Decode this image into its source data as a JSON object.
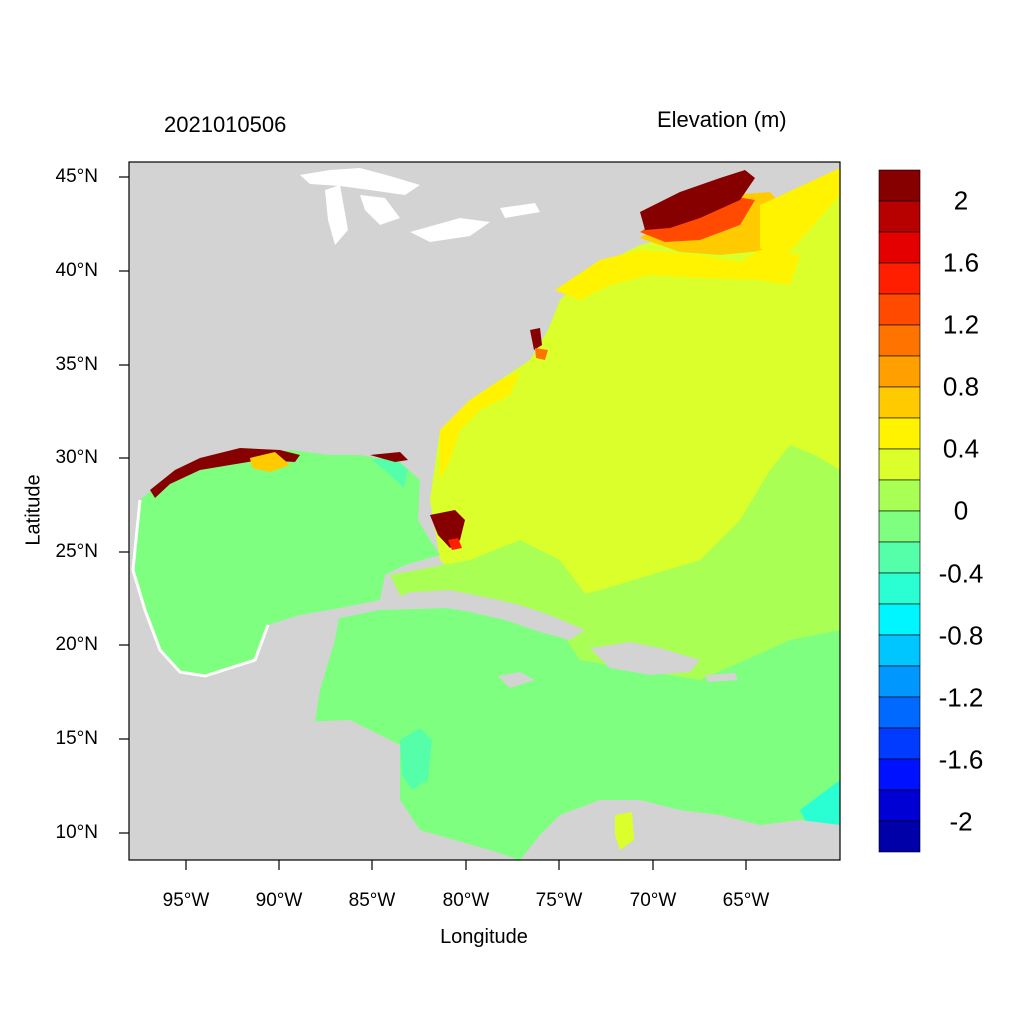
{
  "header": {
    "date_label": "2021010506",
    "variable_title": "Elevation (m)"
  },
  "axes": {
    "xlabel": "Longitude",
    "ylabel": "Latitude",
    "lat_ticks": [
      "45°N",
      "40°N",
      "35°N",
      "30°N",
      "25°N",
      "20°N",
      "15°N",
      "10°N"
    ],
    "lon_ticks": [
      "95°W",
      "90°W",
      "85°W",
      "80°W",
      "75°W",
      "70°W",
      "65°W"
    ],
    "lat_tick_values": [
      45,
      40,
      35,
      30,
      25,
      20,
      15,
      10
    ],
    "lon_tick_values": [
      -95,
      -90,
      -85,
      -80,
      -75,
      -70,
      -65
    ],
    "lon_range": [
      -98,
      -60
    ],
    "lat_range": [
      8.5,
      46
    ]
  },
  "colorbar": {
    "labels": [
      "2",
      "1.6",
      "1.2",
      "0.8",
      "0.4",
      "0",
      "-0.4",
      "-0.8",
      "-1.2",
      "-1.6",
      "-2"
    ],
    "colors": [
      "#870000",
      "#b70000",
      "#e50000",
      "#ff1e00",
      "#ff4a00",
      "#ff7400",
      "#ff9f00",
      "#ffcb00",
      "#fff300",
      "#dbff2a",
      "#aaff55",
      "#7fff7f",
      "#55ffaa",
      "#2affd4",
      "#00f6ff",
      "#00c6ff",
      "#0097ff",
      "#0069ff",
      "#003bff",
      "#0011ff",
      "#0000d4",
      "#0000a8"
    ]
  },
  "map": {
    "land_color": "#d3d3d3",
    "water_color": "#ffffff",
    "ocean_gulf_color": "#7fff7f",
    "atlantic_color": "#dbff2a",
    "shelf_color": "#aaff55",
    "high_surge_color": "#870000"
  }
}
